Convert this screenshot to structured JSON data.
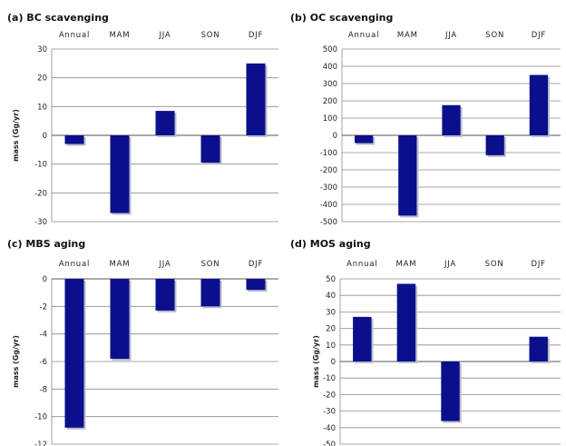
{
  "chart_data": [
    {
      "type": "bar",
      "title": "(a) BC scavenging",
      "categories": [
        "Annual",
        "MAM",
        "JJA",
        "SON",
        "DJF"
      ],
      "values": [
        -3,
        -27,
        8.5,
        -9.5,
        25
      ],
      "ylabel": "mass (Gg/yr)",
      "ylim": [
        -30,
        30
      ],
      "yticks": [
        30,
        20,
        10,
        0,
        -10,
        -20,
        -30
      ],
      "grid": true,
      "color": "#0a0f8c"
    },
    {
      "type": "bar",
      "title": "(b) OC scavenging",
      "categories": [
        "Annual",
        "MAM",
        "JJA",
        "SON",
        "DJF"
      ],
      "values": [
        -45,
        -465,
        175,
        -115,
        350
      ],
      "ylabel": "",
      "ylim": [
        -500,
        500
      ],
      "yticks": [
        500,
        400,
        300,
        200,
        100,
        0,
        -100,
        -200,
        -300,
        -400,
        -500
      ],
      "grid": true,
      "color": "#0a0f8c"
    },
    {
      "type": "bar",
      "title": "(c) MBS aging",
      "categories": [
        "Annual",
        "MAM",
        "JJA",
        "SON",
        "DJF"
      ],
      "values": [
        -10.8,
        -5.8,
        -2.3,
        -2.0,
        -0.8
      ],
      "ylabel": "mass (Gg/yr)",
      "ylim": [
        -12,
        0
      ],
      "yticks": [
        0,
        -2,
        -4,
        -6,
        -8,
        -10,
        -12
      ],
      "grid": true,
      "color": "#0a0f8c"
    },
    {
      "type": "bar",
      "title": "(d) MOS aging",
      "categories": [
        "Annual",
        "MAM",
        "JJA",
        "SON",
        "DJF"
      ],
      "values": [
        27,
        47,
        -36,
        0,
        15
      ],
      "ylabel": "mass (Gg/yr)",
      "ylim": [
        -50,
        50
      ],
      "yticks": [
        50,
        40,
        30,
        20,
        10,
        0,
        -10,
        -20,
        -30,
        -40,
        -50
      ],
      "grid": true,
      "color": "#0a0f8c"
    }
  ]
}
